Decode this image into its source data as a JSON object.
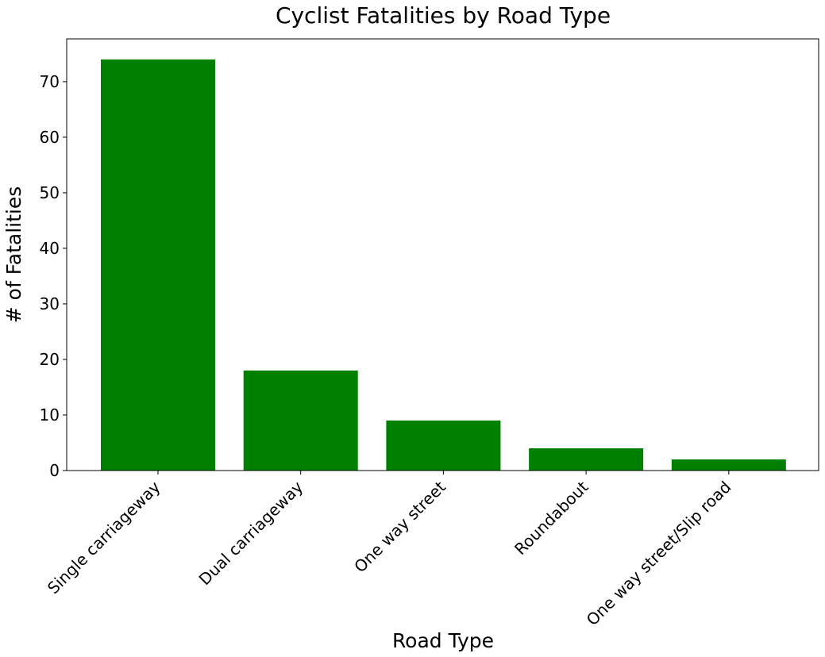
{
  "chart_data": {
    "type": "bar",
    "title": "Cyclist Fatalities by Road Type",
    "xlabel": "Road Type",
    "ylabel": "# of Fatalities",
    "categories": [
      "Single carriageway",
      "Dual carriageway",
      "One way street",
      "Roundabout",
      "One way street/Slip road"
    ],
    "values": [
      74,
      18,
      9,
      4,
      2
    ],
    "ylim": [
      0,
      77.7
    ],
    "yticks": [
      0,
      10,
      20,
      30,
      40,
      50,
      60,
      70
    ],
    "bar_color": "#008000",
    "grid": false,
    "legend": "none"
  }
}
